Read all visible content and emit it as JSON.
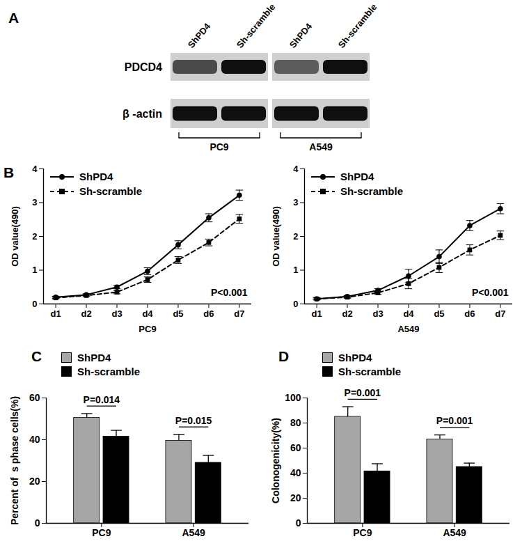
{
  "blot": {
    "panel": "A",
    "rows": [
      {
        "label": "PDCD4",
        "values": [
          0.7,
          1,
          0.6,
          1
        ]
      },
      {
        "label": "β -actin",
        "values": [
          1,
          1,
          1,
          1
        ]
      }
    ],
    "groups": [
      {
        "label": "PC9",
        "lanes": [
          "ShPD4",
          "Sh-scramble"
        ]
      },
      {
        "label": "A549",
        "lanes": [
          "ShPD4",
          "Sh-scramble"
        ]
      }
    ]
  },
  "chart_data": [
    {
      "panel": "B",
      "type": "line",
      "x_label": "PC9",
      "y_label": "OD value(490)",
      "categories": [
        "d1",
        "d2",
        "d3",
        "d4",
        "d5",
        "d6",
        "d7"
      ],
      "ylim": [
        0,
        4
      ],
      "yticks": [
        0,
        1,
        2,
        3,
        4
      ],
      "legend": "top-left",
      "annotations": [
        {
          "text": "P<0.001"
        }
      ],
      "series": [
        {
          "name": "ShPD4",
          "color": "#000000",
          "marker": "circle",
          "line_style": "solid",
          "values": [
            0.2,
            0.27,
            0.5,
            0.97,
            1.75,
            2.55,
            3.22
          ],
          "errors": [
            0.03,
            0.03,
            0.05,
            0.1,
            0.12,
            0.12,
            0.15
          ]
        },
        {
          "name": "Sh-scramble",
          "color": "#000000",
          "marker": "square",
          "line_style": "dashed",
          "values": [
            0.18,
            0.25,
            0.35,
            0.72,
            1.3,
            1.82,
            2.52
          ],
          "errors": [
            0.03,
            0.03,
            0.05,
            0.08,
            0.1,
            0.1,
            0.13
          ]
        }
      ]
    },
    {
      "type": "line",
      "x_label": "A549",
      "y_label": "OD value(490)",
      "categories": [
        "d1",
        "d2",
        "d3",
        "d4",
        "d5",
        "d6",
        "d7"
      ],
      "ylim": [
        0,
        4
      ],
      "yticks": [
        0,
        1,
        2,
        3,
        4
      ],
      "legend": "top-left",
      "annotations": [
        {
          "text": "P<0.001"
        }
      ],
      "series": [
        {
          "name": "ShPD4",
          "color": "#000000",
          "marker": "circle",
          "line_style": "solid",
          "values": [
            0.15,
            0.22,
            0.4,
            0.83,
            1.4,
            2.32,
            2.82
          ],
          "errors": [
            0.03,
            0.03,
            0.05,
            0.2,
            0.2,
            0.15,
            0.15
          ]
        },
        {
          "name": "Sh-scramble",
          "color": "#000000",
          "marker": "square",
          "line_style": "dashed",
          "values": [
            0.15,
            0.2,
            0.33,
            0.6,
            1.08,
            1.6,
            2.03
          ],
          "errors": [
            0.03,
            0.03,
            0.05,
            0.15,
            0.15,
            0.15,
            0.13
          ]
        }
      ]
    },
    {
      "panel": "C",
      "type": "bar",
      "y_label": "Percent of  s phase cells(%)",
      "categories": [
        "PC9",
        "A549"
      ],
      "ylim": [
        0,
        60
      ],
      "yticks": [
        0,
        20,
        40,
        60
      ],
      "legend": "top",
      "annotations": [
        {
          "text": "P=0.014",
          "category": "PC9"
        },
        {
          "text": "P=0.015",
          "category": "A549"
        }
      ],
      "series": [
        {
          "name": "ShPD4",
          "color": "#a6a6a6",
          "values": [
            50.5,
            39.5
          ],
          "errors": [
            2,
            3
          ]
        },
        {
          "name": "Sh-scramble",
          "color": "#000000",
          "values": [
            41.5,
            29
          ],
          "errors": [
            3,
            3.5
          ]
        }
      ]
    },
    {
      "panel": "D",
      "type": "bar",
      "y_label": "Colonogenicity(%)",
      "categories": [
        "PC9",
        "A549"
      ],
      "ylim": [
        0,
        100
      ],
      "yticks": [
        0,
        20,
        40,
        60,
        80,
        100
      ],
      "legend": "top",
      "annotations": [
        {
          "text": "P=0.001",
          "category": "PC9"
        },
        {
          "text": "P=0.001",
          "category": "A549"
        }
      ],
      "series": [
        {
          "name": "ShPD4",
          "color": "#a6a6a6",
          "values": [
            85,
            67
          ],
          "errors": [
            8,
            3.5
          ]
        },
        {
          "name": "Sh-scramble",
          "color": "#000000",
          "values": [
            41.5,
            45
          ],
          "errors": [
            6,
            3
          ]
        }
      ]
    }
  ]
}
